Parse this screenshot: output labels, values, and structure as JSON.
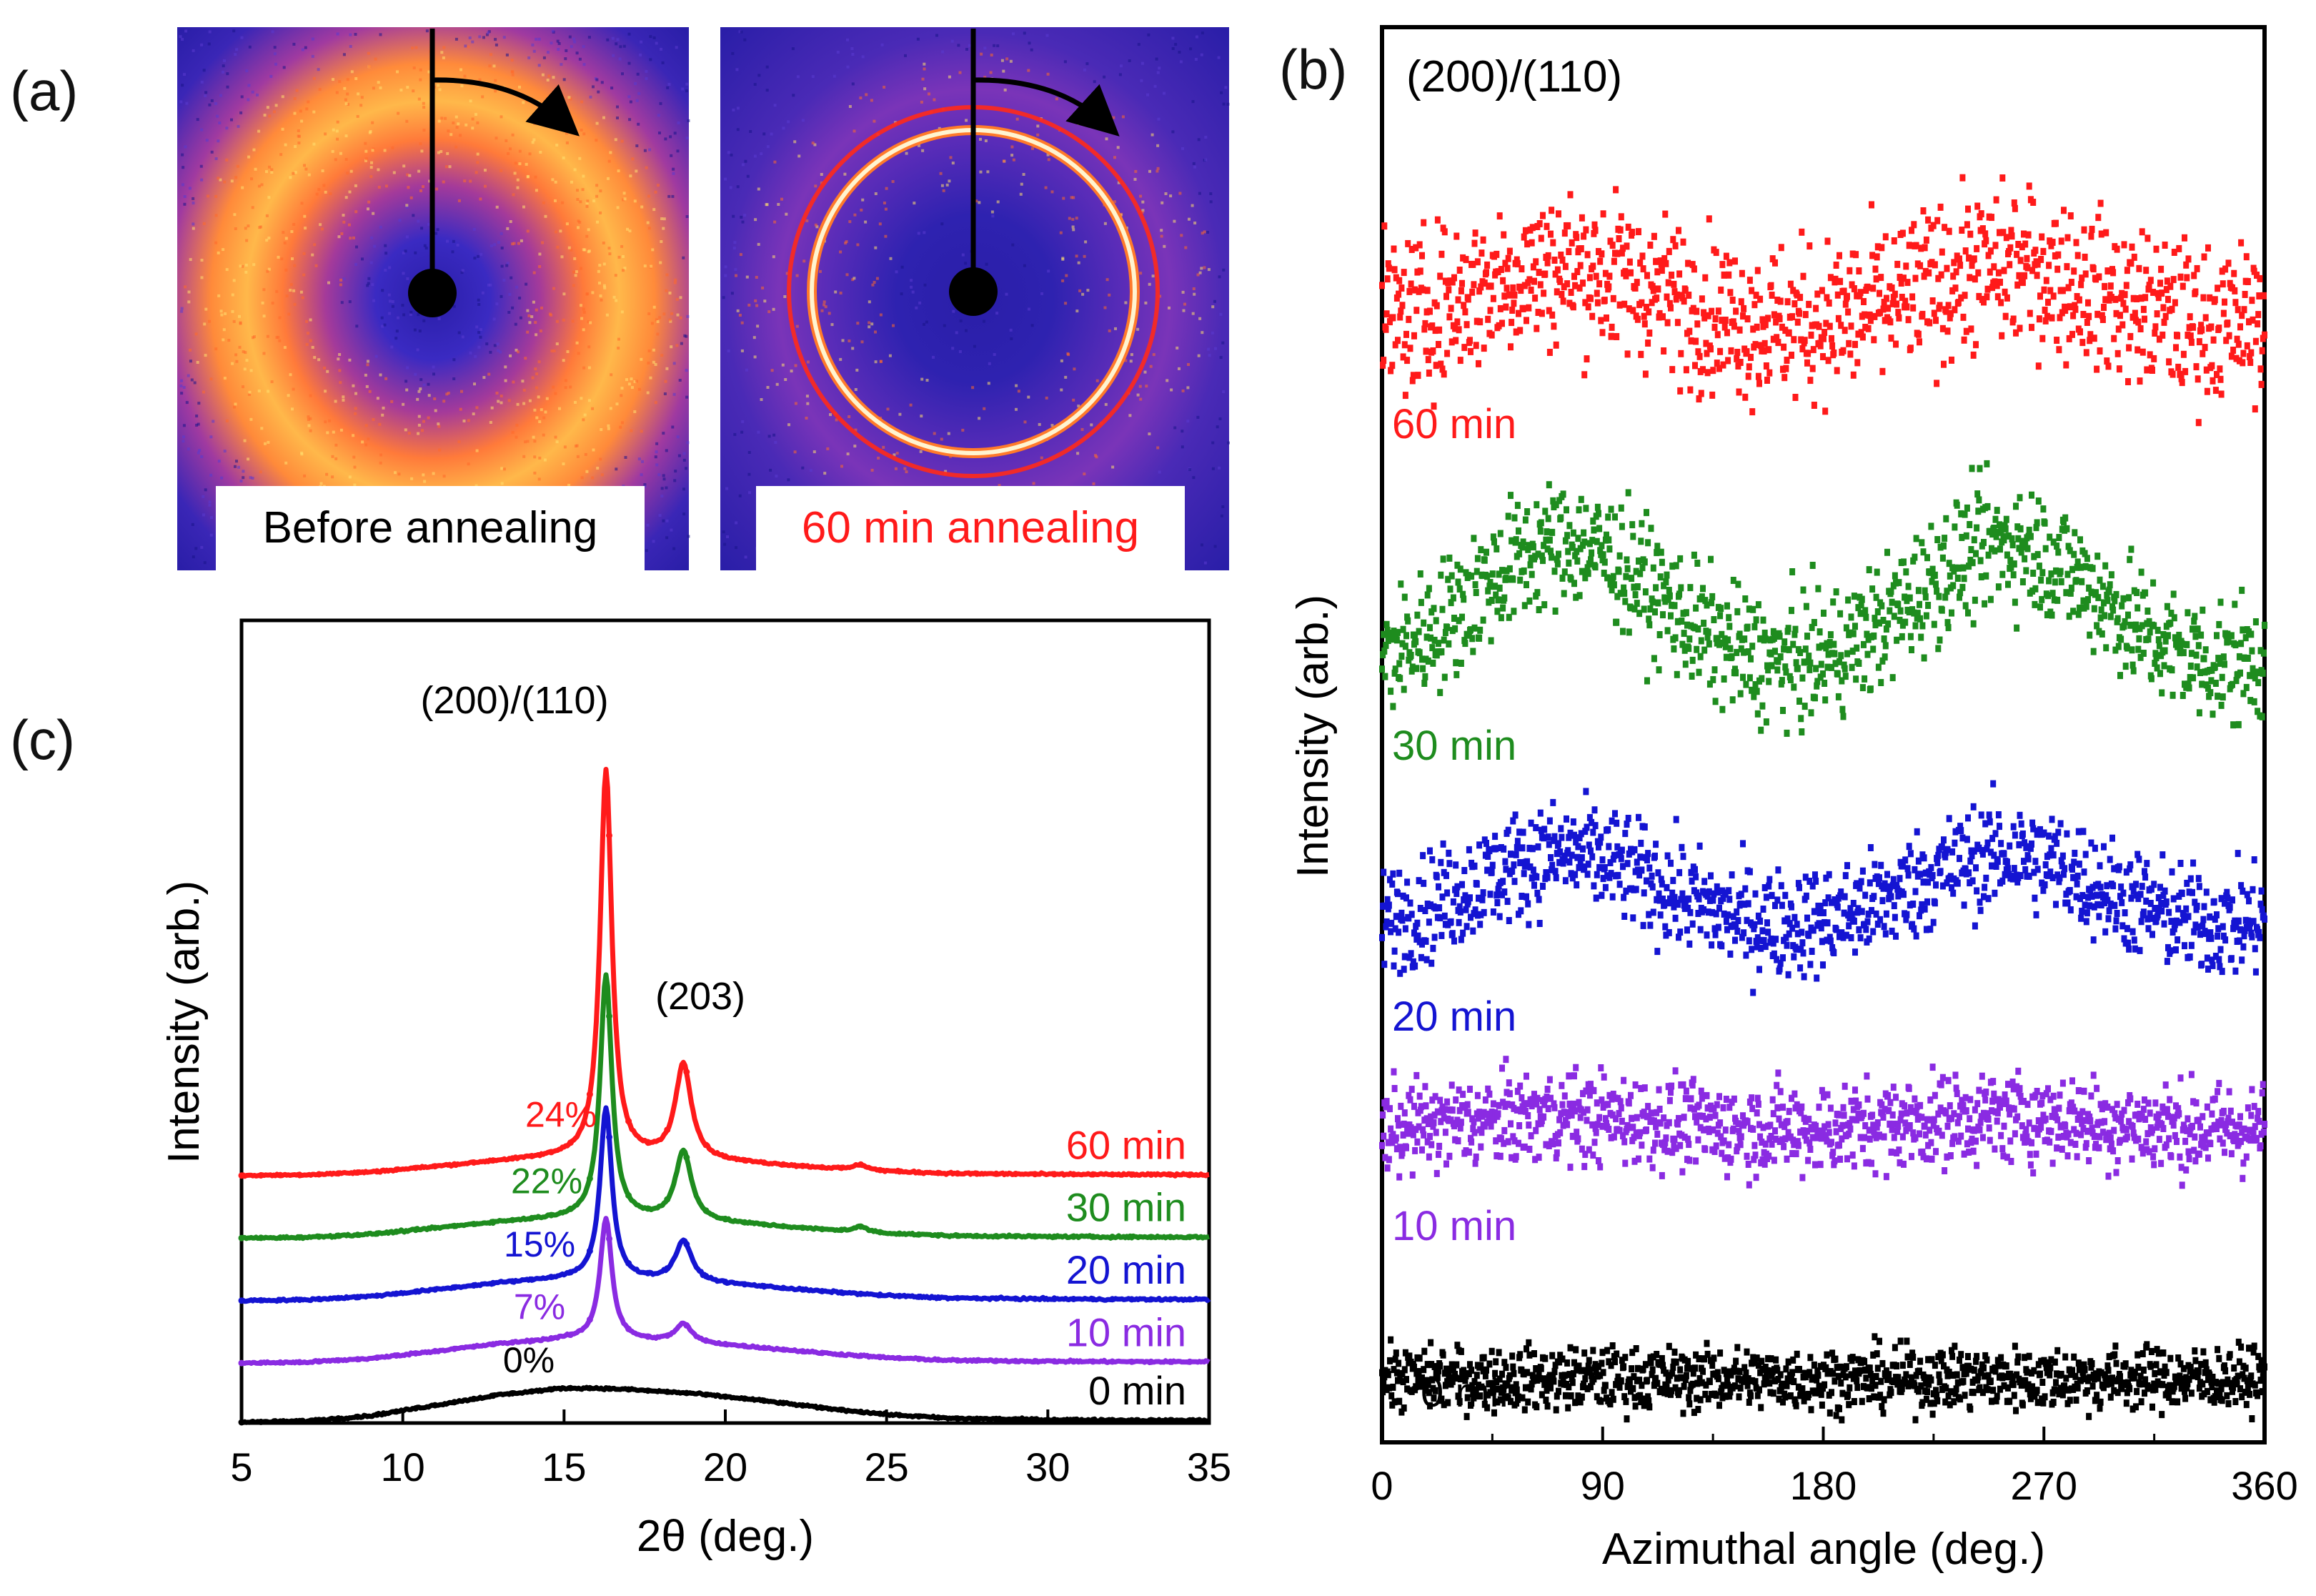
{
  "figure": {
    "label_a": "(a)",
    "label_b": "(b)",
    "label_c": "(c)"
  },
  "panel_a": {
    "images": [
      {
        "caption": "Before annealing",
        "caption_color": "#000000",
        "state": "before",
        "sharp_rings": 0
      },
      {
        "caption": "60 min annealing",
        "caption_color": "#ff1a1a",
        "state": "after",
        "sharp_rings": 2
      }
    ],
    "colors": {
      "background": "#2a1ea8",
      "halo": "#ff8a2a",
      "hot": "#ffd84a",
      "beamstop": "#000000"
    }
  },
  "chart_data": [
    {
      "id": "c",
      "type": "line",
      "xlabel": "2θ (deg.)",
      "ylabel": "Intensity (arb.)",
      "xlim": [
        5,
        35
      ],
      "xticks": [
        5,
        10,
        15,
        20,
        25,
        30,
        35
      ],
      "xtick_labels": [
        "5",
        "10",
        "15",
        "20",
        "25",
        "30",
        "35"
      ],
      "peak_labels": [
        "(200)/(110)",
        "(203)"
      ],
      "peaks_deg": [
        16.3,
        18.7
      ],
      "series": [
        {
          "name": "0 min",
          "color": "#000000",
          "offset": 0.0,
          "crystallinity": "0%",
          "x": [
            5,
            7,
            9,
            11,
            13,
            15,
            16,
            17,
            19,
            21,
            23,
            25,
            27,
            30,
            33,
            35
          ],
          "y": [
            0.0,
            0.02,
            0.1,
            0.26,
            0.42,
            0.52,
            0.52,
            0.5,
            0.44,
            0.34,
            0.22,
            0.12,
            0.06,
            0.04,
            0.03,
            0.03
          ]
        },
        {
          "name": "10 min",
          "color": "#8a2be2",
          "offset": 1.0,
          "crystallinity": "7%",
          "peak_heights": [
            1.85,
            0.28
          ]
        },
        {
          "name": "20 min",
          "color": "#1414d2",
          "offset": 2.0,
          "crystallinity": "15%",
          "peak_heights": [
            2.6,
            0.62
          ]
        },
        {
          "name": "30 min",
          "color": "#1e8c1e",
          "offset": 3.0,
          "crystallinity": "22%",
          "peak_heights": [
            3.7,
            1.05
          ]
        },
        {
          "name": "60 min",
          "color": "#ff1a1a",
          "offset": 4.0,
          "crystallinity": "24%",
          "peak_heights": [
            5.9,
            1.45
          ]
        }
      ]
    },
    {
      "id": "b",
      "type": "scatter",
      "title": "(200)/(110)",
      "xlabel": "Azimuthal angle (deg.)",
      "ylabel": "Intensity (arb.)",
      "xlim": [
        0,
        360
      ],
      "xticks": [
        0,
        90,
        180,
        270,
        360
      ],
      "xtick_labels": [
        "0",
        "90",
        "180",
        "270",
        "360"
      ],
      "ylim": [
        0,
        10
      ],
      "series": [
        {
          "name": "0 min",
          "color": "#000000",
          "baseline": 0.45,
          "amplitude": 0.0,
          "noise": 0.22,
          "peaks_deg": [
            75,
            255
          ]
        },
        {
          "name": "10 min",
          "color": "#8a2be2",
          "baseline": 2.2,
          "amplitude": 0.1,
          "noise": 0.32,
          "peaks_deg": [
            75,
            255
          ]
        },
        {
          "name": "20 min",
          "color": "#1414d2",
          "baseline": 3.6,
          "amplitude": 0.55,
          "noise": 0.38,
          "peaks_deg": [
            75,
            255
          ]
        },
        {
          "name": "30 min",
          "color": "#1e8c1e",
          "baseline": 5.4,
          "amplitude": 0.95,
          "noise": 0.45,
          "peaks_deg": [
            75,
            255
          ]
        },
        {
          "name": "60 min",
          "color": "#ff1a1a",
          "baseline": 7.85,
          "amplitude": 0.45,
          "noise": 0.55,
          "peaks_deg": [
            75,
            255
          ]
        }
      ]
    }
  ]
}
